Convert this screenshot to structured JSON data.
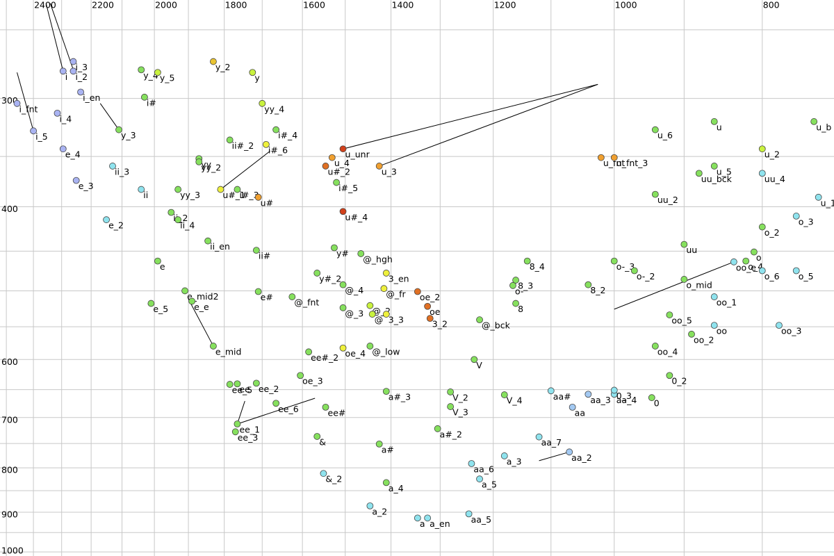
{
  "chart_data": {
    "type": "scatter",
    "xscale": "log",
    "yscale": "log",
    "xlim": [
      2524,
      718
    ],
    "ylim": [
      1011,
      231
    ],
    "xticks": [
      2400,
      2200,
      2000,
      1800,
      1600,
      1400,
      1200,
      1000,
      800
    ],
    "yticks": [
      300,
      400,
      600,
      700,
      800,
      900,
      1000
    ],
    "xgrid": [
      800,
      900,
      1000,
      1100,
      1200,
      1300,
      1400,
      1500,
      1600,
      1700,
      1800,
      1900,
      2000,
      2100,
      2200,
      2300,
      2400,
      2500
    ],
    "ygrid": [
      250,
      300,
      350,
      400,
      450,
      500,
      550,
      600,
      650,
      700,
      750,
      800,
      850,
      900,
      950,
      1000
    ],
    "grid": true,
    "labels": [
      "i_3",
      "i",
      "i_2",
      "i_en",
      "i_fnt",
      "i_4",
      "i_5",
      "e_4",
      "e_3",
      "ii_3",
      "ii",
      "e_2",
      "y_4",
      "y_5",
      "i#",
      "y_3",
      "y_2",
      "y",
      "yy_4",
      "i#_4",
      "ii#_2",
      "i#_6",
      "yy",
      "yy_2",
      "yy_3",
      "u#_1",
      "i#_3",
      "u#",
      "ii_2",
      "ii_4",
      "ii_en",
      "ii#",
      "e",
      "e_mid2",
      "e#",
      "e_e",
      "e_5",
      "e_mid",
      "@_fnt",
      "u_unr",
      "u_4",
      "u#_2",
      "u_3",
      "i#_5",
      "u#_4",
      "y#",
      "@_hgh",
      "y#_2",
      "@_4",
      "3_en",
      "@_fr",
      "@_2",
      "@_3",
      "@",
      "3_3",
      "oe_2",
      "oe",
      "3_2",
      "@_bck",
      "@_low",
      "oe_4",
      "ee#_2",
      "oe_3",
      "ee_5",
      "ee",
      "ee_2",
      "ee_6",
      "ee#",
      "ee_1",
      "ee_3",
      "&",
      "&_2",
      "a#",
      "a#_3",
      "a_4",
      "a_2",
      "a",
      "a_en",
      "V_2",
      "V_3",
      "a#_2",
      "V",
      "V_4",
      "aa_6",
      "a_3",
      "a_5",
      "aa_5",
      "aa_7",
      "aa#",
      "aa",
      "aa_3",
      "aa_4",
      "aa_2",
      "0_3",
      "0",
      "0_2",
      "8_4",
      "8_3",
      "o-",
      "8",
      "8_2",
      "o-_3",
      "o-_2",
      "u_6",
      "u",
      "u_b",
      "u_2",
      "u_5",
      "uu_bck",
      "uu_4",
      "u_1",
      "uu_2",
      "u_fnt",
      "u_fnt_3",
      "o_3",
      "o_2",
      "uu",
      "o",
      "oo_e",
      "o_4",
      "o_6",
      "o_5",
      "o_mid",
      "oo_1",
      "oo_5",
      "oo",
      "oo_2",
      "oo_3",
      "oo_4"
    ],
    "x": [
      2260,
      2295,
      2260,
      2235,
      2460,
      2315,
      2400,
      2295,
      2250,
      2130,
      2040,
      2150,
      2040,
      1990,
      2030,
      2110,
      1830,
      1725,
      1700,
      1665,
      1785,
      1690,
      1870,
      1870,
      1930,
      1810,
      1765,
      1710,
      1950,
      1930,
      1845,
      1715,
      1990,
      1910,
      1710,
      1890,
      2010,
      1830,
      1625,
      1505,
      1530,
      1545,
      1425,
      1520,
      1505,
      1525,
      1465,
      1565,
      1505,
      1410,
      1415,
      1445,
      1505,
      1440,
      1410,
      1345,
      1325,
      1320,
      1225,
      1445,
      1505,
      1585,
      1605,
      1785,
      1765,
      1715,
      1665,
      1545,
      1765,
      1770,
      1565,
      1550,
      1425,
      1410,
      1410,
      1445,
      1345,
      1325,
      1280,
      1280,
      1305,
      1235,
      1180,
      1240,
      1180,
      1225,
      1245,
      1120,
      1100,
      1065,
      1040,
      1000,
      1070,
      1000,
      945,
      920,
      1140,
      1160,
      1165,
      1160,
      1040,
      1000,
      970,
      940,
      860,
      740,
      800,
      860,
      880,
      800,
      735,
      940,
      1020,
      1000,
      760,
      800,
      900,
      810,
      835,
      820,
      800,
      760,
      900,
      860,
      920,
      860,
      890,
      780,
      940
    ],
    "y": [
      272,
      279,
      279,
      295,
      304,
      312,
      327,
      343,
      373,
      359,
      382,
      414,
      278,
      280,
      299,
      326,
      272,
      280,
      304,
      326,
      335,
      339,
      352,
      355,
      382,
      382,
      382,
      390,
      406,
      414,
      438,
      449,
      462,
      500,
      501,
      514,
      517,
      579,
      508,
      343,
      351,
      359,
      359,
      375,
      405,
      446,
      453,
      477,
      492,
      477,
      497,
      520,
      523,
      532,
      532,
      501,
      521,
      538,
      540,
      579,
      582,
      588,
      626,
      641,
      640,
      639,
      674,
      681,
      712,
      727,
      736,
      812,
      751,
      653,
      832,
      885,
      914,
      914,
      654,
      680,
      721,
      600,
      659,
      791,
      775,
      824,
      904,
      737,
      652,
      681,
      658,
      658,
      767,
      651,
      664,
      626,
      462,
      486,
      493,
      517,
      492,
      462,
      474,
      326,
      319,
      319,
      343,
      359,
      366,
      366,
      390,
      387,
      351,
      351,
      410,
      422,
      442,
      451,
      463,
      462,
      474,
      474,
      485,
      508,
      533,
      548,
      561,
      548,
      579
    ],
    "colors": [
      "#a9b3f2",
      "#a9b3f2",
      "#a9b3f2",
      "#a9b3f2",
      "#a9b3f2",
      "#a9b3f2",
      "#a9b3f2",
      "#a9b3f2",
      "#a9b3f2",
      "#8fe3ee",
      "#8fe3ee",
      "#8fe3ee",
      "#86e05e",
      "#c9f23e",
      "#86e05e",
      "#86e05e",
      "#e9c432",
      "#c9f23e",
      "#c9f23e",
      "#86e05e",
      "#86e05e",
      "#eef03c",
      "#86e05e",
      "#86e05e",
      "#86e05e",
      "#eef03c",
      "#86e05e",
      "#f0a030",
      "#86e05e",
      "#86e05e",
      "#86e05e",
      "#86e05e",
      "#86e05e",
      "#86e05e",
      "#86e05e",
      "#86e05e",
      "#86e05e",
      "#86e05e",
      "#86e05e",
      "#d2401a",
      "#f0a030",
      "#e07024",
      "#f0a030",
      "#86e05e",
      "#d2401a",
      "#86e05e",
      "#86e05e",
      "#86e05e",
      "#86e05e",
      "#eef03c",
      "#eef03c",
      "#c9f23e",
      "#86e05e",
      "#c9f23e",
      "#eef03c",
      "#e07024",
      "#e07024",
      "#e07024",
      "#86e05e",
      "#86e05e",
      "#eef03c",
      "#86e05e",
      "#86e05e",
      "#86e05e",
      "#86e05e",
      "#86e05e",
      "#86e05e",
      "#86e05e",
      "#86e05e",
      "#86e05e",
      "#86e05e",
      "#8fe3ee",
      "#86e05e",
      "#86e05e",
      "#86e05e",
      "#8fe3ee",
      "#8fe3ee",
      "#8fe3ee",
      "#86e05e",
      "#86e05e",
      "#86e05e",
      "#86e05e",
      "#86e05e",
      "#8fe3ee",
      "#8fe3ee",
      "#8fe3ee",
      "#8fe3ee",
      "#8fe3ee",
      "#8fe3ee",
      "#a3c9f2",
      "#a3c9f2",
      "#8fe3ee",
      "#a3c9f2",
      "#8fe3ee",
      "#86e05e",
      "#86e05e",
      "#86e05e",
      "#86e05e",
      "#86e05e",
      "#86e05e",
      "#86e05e",
      "#86e05e",
      "#86e05e",
      "#86e05e",
      "#86e05e",
      "#86e05e",
      "#c9f23e",
      "#86e05e",
      "#86e05e",
      "#8fe3ee",
      "#8fe3ee",
      "#86e05e",
      "#f0a030",
      "#f0a030",
      "#8fe3ee",
      "#86e05e",
      "#86e05e",
      "#86e05e",
      "#8fe3ee",
      "#86e05e",
      "#8fe3ee",
      "#8fe3ee",
      "#86e05e",
      "#8fe3ee",
      "#86e05e",
      "#8fe3ee",
      "#86e05e",
      "#8fe3ee",
      "#86e05e"
    ],
    "lines": [
      {
        "x": [
          2355,
          2295
        ],
        "y": [
          233,
          279
        ]
      },
      {
        "x": [
          2340,
          2260
        ],
        "y": [
          233,
          278
        ]
      },
      {
        "x": [
          2460,
          2400
        ],
        "y": [
          280,
          327
        ]
      },
      {
        "x": [
          2170,
          2110
        ],
        "y": [
          304,
          326
        ]
      },
      {
        "x": [
          1810,
          1680
        ],
        "y": [
          382,
          345
        ]
      },
      {
        "x": [
          1505,
          1025
        ],
        "y": [
          343,
          289
        ]
      },
      {
        "x": [
          1425,
          1025
        ],
        "y": [
          359,
          289
        ]
      },
      {
        "x": [
          1000,
          835
        ],
        "y": [
          525,
          463
        ]
      },
      {
        "x": [
          1830,
          1900
        ],
        "y": [
          579,
          511
        ]
      },
      {
        "x": [
          1765,
          1745
        ],
        "y": [
          712,
          670
        ]
      },
      {
        "x": [
          1765,
          1570
        ],
        "y": [
          712,
          665
        ]
      },
      {
        "x": [
          1120,
          1070
        ],
        "y": [
          785,
          767
        ]
      }
    ]
  }
}
